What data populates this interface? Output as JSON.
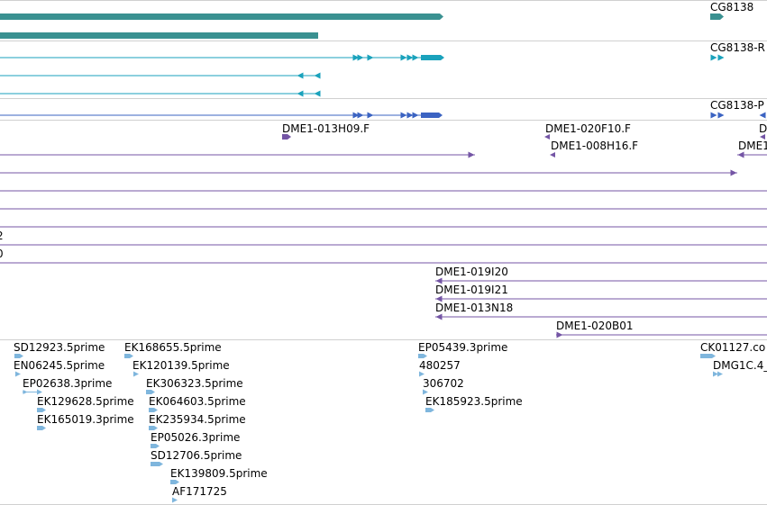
{
  "colors": {
    "background": "#ffffff",
    "separator": "#d0d0d0",
    "gene_block": "#3a9191",
    "transcript": "#1aa2bc",
    "protein": "#3b63c2",
    "clone": "#7455a5",
    "est": "#7fb6dd"
  },
  "tracks": {
    "genes": {
      "name": "gene-track",
      "labels": [
        {
          "name": "gene-label-cg8138",
          "text": "CG8138"
        }
      ]
    },
    "transcripts": {
      "name": "transcript-track",
      "labels": [
        {
          "name": "transcript-label-cg8138-r",
          "text": "CG8138-R"
        }
      ]
    },
    "proteins": {
      "name": "protein-track",
      "labels": [
        {
          "name": "protein-label-cg8138-p",
          "text": "CG8138-P"
        }
      ]
    },
    "clones": {
      "name": "clone-track",
      "labels": [
        {
          "name": "clone-label-dme1-013h09-f",
          "text": "DME1-013H09.F"
        },
        {
          "name": "clone-label-dme1-020f10-f",
          "text": "DME1-020F10.F"
        },
        {
          "name": "clone-label-dme1-008h16-f",
          "text": "DME1-008H16.F"
        },
        {
          "name": "clone-label-right-cut-a",
          "text": "D"
        },
        {
          "name": "clone-label-right-cut-b",
          "text": "DME1"
        },
        {
          "name": "clone-label-left-cut-a",
          "text": "2"
        },
        {
          "name": "clone-label-left-cut-b",
          "text": "0"
        },
        {
          "name": "clone-label-dme1-019i20",
          "text": "DME1-019I20"
        },
        {
          "name": "clone-label-dme1-019i21",
          "text": "DME1-019I21"
        },
        {
          "name": "clone-label-dme1-013n18",
          "text": "DME1-013N18"
        },
        {
          "name": "clone-label-dme1-020b01",
          "text": "DME1-020B01"
        }
      ]
    },
    "ests": {
      "name": "est-track",
      "labels": [
        {
          "name": "est-label-sd12923",
          "text": "SD12923.5prime"
        },
        {
          "name": "est-label-en06245",
          "text": "EN06245.5prime"
        },
        {
          "name": "est-label-ep02638",
          "text": "EP02638.3prime"
        },
        {
          "name": "est-label-ek129628",
          "text": "EK129628.5prime"
        },
        {
          "name": "est-label-ek165019",
          "text": "EK165019.3prime"
        },
        {
          "name": "est-label-ek168655",
          "text": "EK168655.5prime"
        },
        {
          "name": "est-label-ek120139",
          "text": "EK120139.5prime"
        },
        {
          "name": "est-label-ek306323",
          "text": "EK306323.5prime"
        },
        {
          "name": "est-label-ek064603",
          "text": "EK064603.5prime"
        },
        {
          "name": "est-label-ek235934",
          "text": "EK235934.5prime"
        },
        {
          "name": "est-label-ep05026",
          "text": "EP05026.3prime"
        },
        {
          "name": "est-label-sd12706",
          "text": "SD12706.5prime"
        },
        {
          "name": "est-label-ek139809",
          "text": "EK139809.5prime"
        },
        {
          "name": "est-label-af171725",
          "text": "AF171725"
        },
        {
          "name": "est-label-ep05439",
          "text": "EP05439.3prime"
        },
        {
          "name": "est-label-480257",
          "text": "480257"
        },
        {
          "name": "est-label-306702",
          "text": "306702"
        },
        {
          "name": "est-label-ek185923",
          "text": "EK185923.5prime"
        },
        {
          "name": "est-label-ck01127",
          "text": "CK01127.co"
        },
        {
          "name": "est-label-dmg1c4",
          "text": "DMG1C.4_"
        }
      ]
    }
  }
}
